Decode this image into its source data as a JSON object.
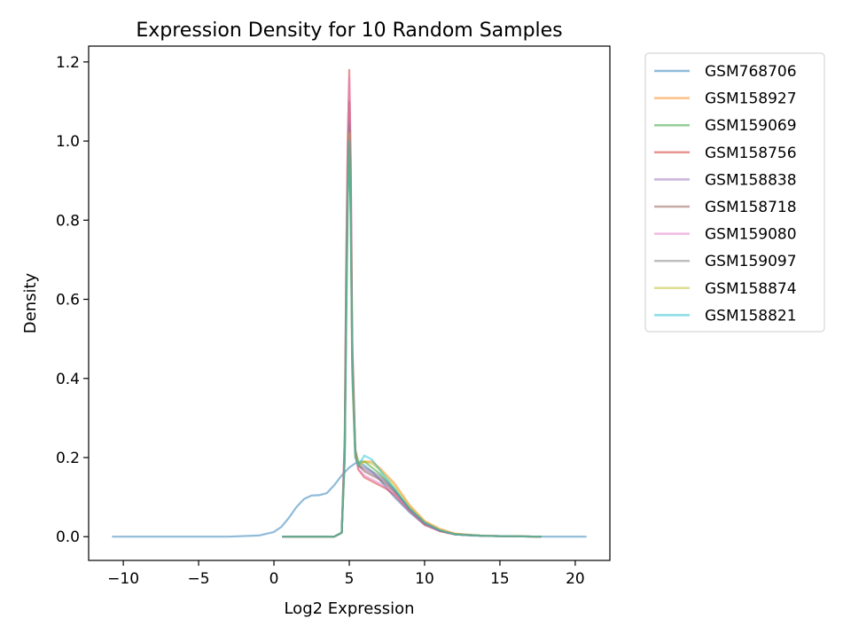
{
  "chart_data": {
    "type": "line",
    "title": "Expression Density for 10 Random Samples",
    "xlabel": "Log2 Expression",
    "ylabel": "Density",
    "xlim": [
      -12.3,
      22.3
    ],
    "ylim": [
      -0.06,
      1.24
    ],
    "x_ticks": [
      -10,
      -5,
      0,
      5,
      10,
      15,
      20
    ],
    "x_tick_labels": [
      "−10",
      "−5",
      "0",
      "5",
      "10",
      "15",
      "20"
    ],
    "y_ticks": [
      0.0,
      0.2,
      0.4,
      0.6,
      0.8,
      1.0,
      1.2
    ],
    "y_tick_labels": [
      "0.0",
      "0.2",
      "0.4",
      "0.6",
      "0.8",
      "1.0",
      "1.2"
    ],
    "grid": false,
    "legend_position": "outside-upper-right",
    "series": [
      {
        "name": "GSM768706",
        "color": "#1f77b4",
        "x": [
          -10.7,
          -6,
          -3,
          -1,
          0,
          0.5,
          1,
          1.5,
          2,
          2.5,
          3,
          3.5,
          4,
          4.5,
          5,
          5.5,
          6,
          6.5,
          7,
          8,
          9,
          10,
          11,
          12,
          13,
          15,
          18,
          20.7
        ],
        "y": [
          0,
          0,
          0,
          0.003,
          0.012,
          0.025,
          0.048,
          0.075,
          0.095,
          0.104,
          0.105,
          0.11,
          0.13,
          0.155,
          0.175,
          0.188,
          0.18,
          0.165,
          0.145,
          0.1,
          0.062,
          0.03,
          0.015,
          0.007,
          0.003,
          0.001,
          0,
          0
        ]
      },
      {
        "name": "GSM158927",
        "color": "#ff7f0e",
        "x": [
          0.6,
          2,
          3,
          4,
          4.5,
          4.7,
          4.8,
          4.9,
          5.0,
          5.1,
          5.2,
          5.4,
          5.6,
          6,
          6.5,
          7,
          7.5,
          8,
          9,
          10,
          11,
          12,
          14,
          17.7
        ],
        "y": [
          0,
          0,
          0,
          0,
          0.01,
          0.2,
          0.6,
          0.9,
          1.03,
          0.8,
          0.4,
          0.2,
          0.18,
          0.19,
          0.19,
          0.175,
          0.155,
          0.135,
          0.08,
          0.04,
          0.02,
          0.008,
          0.002,
          0
        ]
      },
      {
        "name": "GSM159069",
        "color": "#2ca02c",
        "x": [
          0.6,
          2,
          3,
          4,
          4.5,
          4.7,
          4.8,
          4.9,
          5.0,
          5.1,
          5.2,
          5.4,
          5.6,
          6,
          6.5,
          7,
          7.5,
          8,
          9,
          10,
          11,
          12,
          14,
          17.7
        ],
        "y": [
          0,
          0,
          0,
          0,
          0.01,
          0.2,
          0.55,
          0.85,
          1.0,
          0.8,
          0.45,
          0.22,
          0.19,
          0.19,
          0.175,
          0.16,
          0.14,
          0.12,
          0.07,
          0.035,
          0.015,
          0.006,
          0.002,
          0
        ]
      },
      {
        "name": "GSM158756",
        "color": "#d62728",
        "x": [
          0.6,
          2,
          3,
          4,
          4.5,
          4.7,
          4.8,
          4.9,
          5.0,
          5.1,
          5.2,
          5.4,
          5.6,
          6,
          6.5,
          7,
          7.5,
          8,
          9,
          10,
          11,
          12,
          14,
          17.7
        ],
        "y": [
          0,
          0,
          0,
          0,
          0.01,
          0.25,
          0.7,
          1.0,
          1.18,
          0.95,
          0.5,
          0.22,
          0.17,
          0.15,
          0.14,
          0.13,
          0.12,
          0.105,
          0.065,
          0.03,
          0.014,
          0.006,
          0.002,
          0
        ]
      },
      {
        "name": "GSM158838",
        "color": "#9467bd",
        "x": [
          0.6,
          2,
          3,
          4,
          4.5,
          4.7,
          4.8,
          4.9,
          5.0,
          5.1,
          5.2,
          5.4,
          5.6,
          6,
          6.5,
          7,
          7.5,
          8,
          9,
          10,
          11,
          12,
          14,
          17.7
        ],
        "y": [
          0,
          0,
          0,
          0,
          0.01,
          0.22,
          0.6,
          0.9,
          1.05,
          0.85,
          0.45,
          0.21,
          0.18,
          0.17,
          0.16,
          0.15,
          0.135,
          0.115,
          0.07,
          0.035,
          0.016,
          0.006,
          0.002,
          0
        ]
      },
      {
        "name": "GSM158718",
        "color": "#8c564b",
        "x": [
          0.6,
          2,
          3,
          4,
          4.5,
          4.7,
          4.8,
          4.9,
          5.0,
          5.1,
          5.2,
          5.4,
          5.6,
          6,
          6.5,
          7,
          7.5,
          8,
          9,
          10,
          11,
          12,
          14,
          17.7
        ],
        "y": [
          0,
          0,
          0,
          0,
          0.01,
          0.22,
          0.65,
          0.95,
          1.1,
          0.88,
          0.46,
          0.21,
          0.18,
          0.165,
          0.155,
          0.145,
          0.13,
          0.112,
          0.068,
          0.033,
          0.015,
          0.006,
          0.002,
          0
        ]
      },
      {
        "name": "GSM159080",
        "color": "#e377c2",
        "x": [
          0.6,
          2,
          3,
          4,
          4.5,
          4.7,
          4.8,
          4.9,
          5.0,
          5.1,
          5.2,
          5.4,
          5.6,
          6,
          6.5,
          7,
          7.5,
          8,
          9,
          10,
          11,
          12,
          14,
          17.7
        ],
        "y": [
          0,
          0,
          0,
          0,
          0.01,
          0.25,
          0.7,
          1.0,
          1.16,
          0.93,
          0.48,
          0.21,
          0.17,
          0.155,
          0.145,
          0.135,
          0.123,
          0.107,
          0.066,
          0.031,
          0.014,
          0.006,
          0.002,
          0
        ]
      },
      {
        "name": "GSM159097",
        "color": "#7f7f7f",
        "x": [
          0.6,
          2,
          3,
          4,
          4.5,
          4.7,
          4.8,
          4.9,
          5.0,
          5.1,
          5.2,
          5.4,
          5.6,
          6,
          6.5,
          7,
          7.5,
          8,
          9,
          10,
          11,
          12,
          14,
          17.7
        ],
        "y": [
          0,
          0,
          0,
          0,
          0.01,
          0.22,
          0.6,
          0.9,
          1.04,
          0.84,
          0.45,
          0.21,
          0.18,
          0.175,
          0.165,
          0.155,
          0.138,
          0.118,
          0.072,
          0.036,
          0.016,
          0.006,
          0.002,
          0
        ]
      },
      {
        "name": "GSM158874",
        "color": "#bcbd22",
        "x": [
          0.6,
          2,
          3,
          4,
          4.5,
          4.7,
          4.8,
          4.9,
          5.0,
          5.1,
          5.2,
          5.4,
          5.6,
          6,
          6.5,
          7,
          7.5,
          8,
          9,
          10,
          11,
          12,
          14,
          17.7
        ],
        "y": [
          0,
          0,
          0,
          0,
          0.01,
          0.2,
          0.58,
          0.88,
          1.02,
          0.82,
          0.43,
          0.21,
          0.18,
          0.19,
          0.185,
          0.17,
          0.15,
          0.128,
          0.077,
          0.038,
          0.018,
          0.007,
          0.002,
          0
        ]
      },
      {
        "name": "GSM158821",
        "color": "#17becf",
        "x": [
          0.6,
          2,
          3,
          4,
          4.5,
          4.7,
          4.8,
          4.9,
          5.0,
          5.1,
          5.2,
          5.4,
          5.6,
          6,
          6.5,
          7,
          7.5,
          8,
          9,
          10,
          11,
          12,
          14,
          17.7
        ],
        "y": [
          0,
          0,
          0,
          0,
          0.01,
          0.2,
          0.55,
          0.85,
          1.0,
          0.8,
          0.42,
          0.2,
          0.18,
          0.205,
          0.195,
          0.17,
          0.145,
          0.12,
          0.07,
          0.035,
          0.016,
          0.006,
          0.002,
          0
        ]
      }
    ]
  }
}
